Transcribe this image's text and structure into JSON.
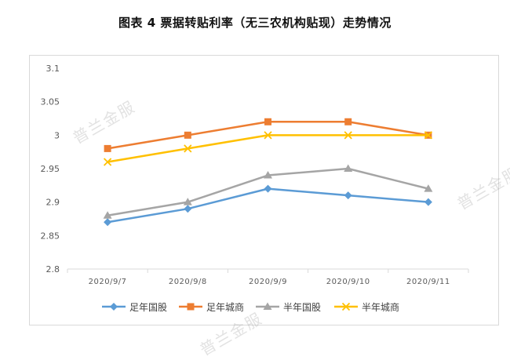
{
  "title": "图表 4  票据转贴利率（无三农机构贴现）走势情况",
  "watermark": "普兰金服",
  "chart_data": {
    "type": "line",
    "categories": [
      "2020/9/7",
      "2020/9/8",
      "2020/9/9",
      "2020/9/10",
      "2020/9/11"
    ],
    "series": [
      {
        "name": "足年国股",
        "values": [
          2.87,
          2.89,
          2.92,
          2.91,
          2.9
        ],
        "color": "#5B9BD5",
        "marker": "diamond"
      },
      {
        "name": "足年城商",
        "values": [
          2.98,
          3.0,
          3.02,
          3.02,
          3.0
        ],
        "color": "#ED7D31",
        "marker": "square"
      },
      {
        "name": "半年国股",
        "values": [
          2.88,
          2.9,
          2.94,
          2.95,
          2.92
        ],
        "color": "#A5A5A5",
        "marker": "triangle"
      },
      {
        "name": "半年城商",
        "values": [
          2.96,
          2.98,
          3.0,
          3.0,
          3.0
        ],
        "color": "#FFC000",
        "marker": "x"
      }
    ],
    "ylim": [
      2.8,
      3.1
    ],
    "yticks": [
      "2.8",
      "2.85",
      "2.9",
      "2.95",
      "3",
      "3.05",
      "3.1"
    ],
    "grid": false,
    "legend_position": "bottom"
  }
}
